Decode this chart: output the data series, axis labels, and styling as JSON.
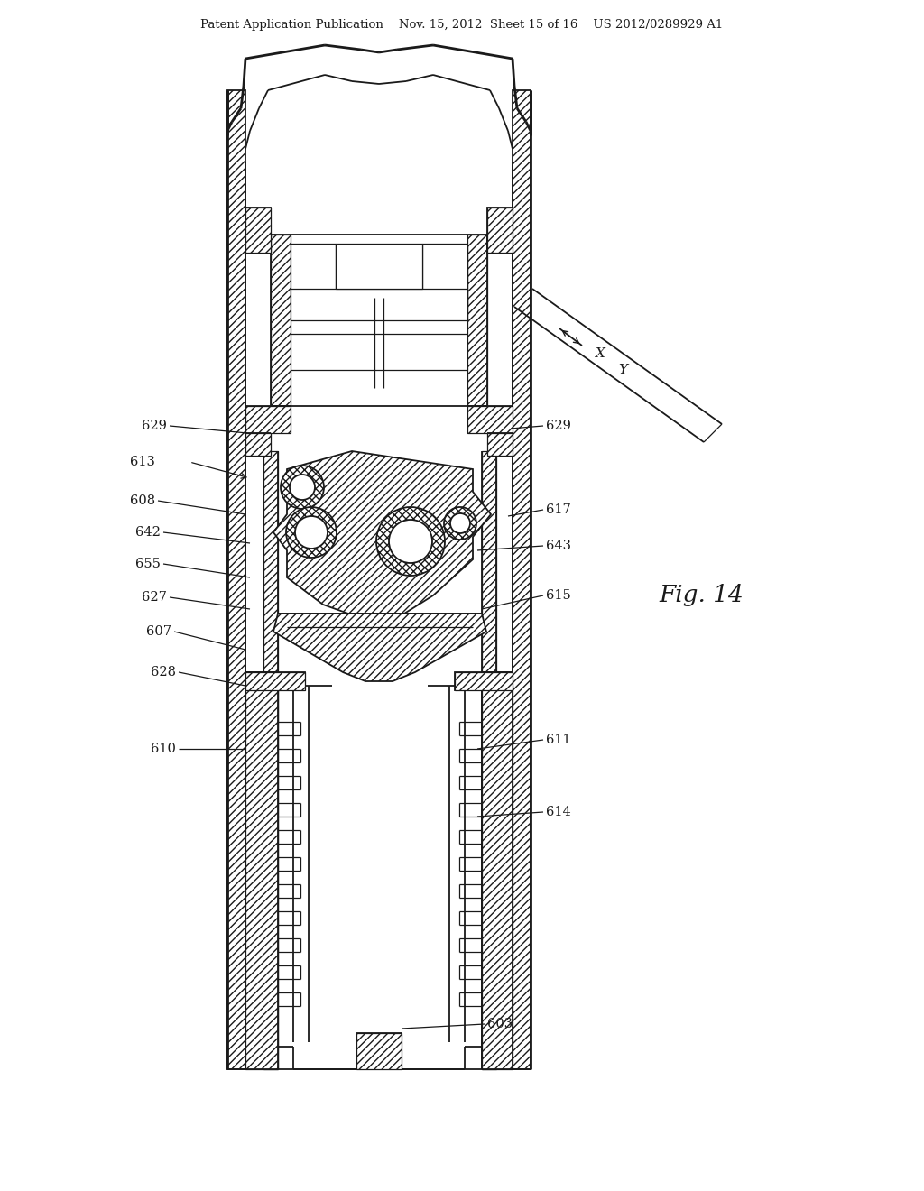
{
  "bg_color": "#ffffff",
  "line_color": "#1a1a1a",
  "header_text": "Patent Application Publication    Nov. 15, 2012  Sheet 15 of 16    US 2012/0289929 A1",
  "fig_label": "Fig. 14",
  "labels": {
    "629_left": "629",
    "613": "613",
    "608": "608",
    "642": "642",
    "655": "655",
    "627": "627",
    "607": "607",
    "628": "628",
    "610": "610",
    "629_right": "629",
    "617": "617",
    "643": "643",
    "615": "615",
    "611": "611",
    "614": "614",
    "603": "603",
    "X": "X",
    "Y": "Y"
  }
}
